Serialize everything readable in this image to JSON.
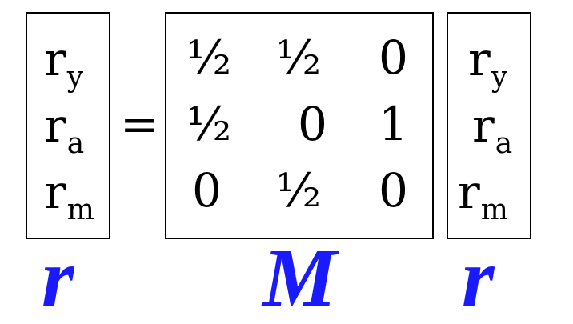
{
  "left_vector": {
    "entries": [
      {
        "base": "r",
        "sub": "y"
      },
      {
        "base": "r",
        "sub": "a"
      },
      {
        "base": "r",
        "sub": "m"
      }
    ]
  },
  "equals_sign": "=",
  "matrix": {
    "rows": [
      [
        "½",
        "½",
        "0"
      ],
      [
        "½",
        "0",
        "1"
      ],
      [
        "0",
        "½",
        "0"
      ]
    ]
  },
  "right_vector": {
    "entries": [
      {
        "base": "r",
        "sub": "y"
      },
      {
        "base": "r",
        "sub": "a"
      },
      {
        "base": "r",
        "sub": "m"
      }
    ]
  },
  "labels": {
    "left": "r",
    "middle": "M",
    "right": "r"
  },
  "colors": {
    "label": "#1a1aff",
    "text": "#000000",
    "border": "#000000"
  }
}
